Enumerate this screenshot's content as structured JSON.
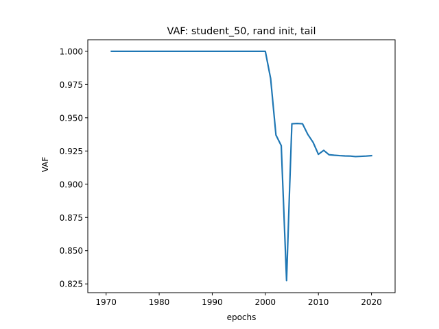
{
  "chart_data": {
    "type": "line",
    "title": "VAF: student_50, rand init, tail",
    "xlabel": "epochs",
    "ylabel": "VAF",
    "xlim": [
      1966.55,
      2024.45
    ],
    "ylim": [
      0.8184,
      1.0087
    ],
    "x_ticks": [
      1970,
      1980,
      1990,
      2000,
      2010,
      2020
    ],
    "x_tick_labels": [
      "1970",
      "1980",
      "1990",
      "2000",
      "2010",
      "2020"
    ],
    "y_ticks": [
      0.825,
      0.85,
      0.875,
      0.9,
      0.925,
      0.95,
      0.975,
      1.0
    ],
    "y_tick_labels": [
      "0.825",
      "0.850",
      "0.875",
      "0.900",
      "0.925",
      "0.950",
      "0.975",
      "1.000"
    ],
    "grid": false,
    "series": [
      {
        "color": "#1f77b4",
        "x": [
          1971,
          1975,
          1980,
          1985,
          1990,
          1995,
          2000,
          2001,
          2002,
          2003,
          2004,
          2004.6,
          2005,
          2006,
          2007,
          2008,
          2009,
          2010,
          2011,
          2012,
          2013,
          2014,
          2015,
          2016,
          2017,
          2018,
          2019,
          2020
        ],
        "y": [
          1.0,
          1.0,
          1.0,
          1.0,
          1.0,
          1.0,
          1.0,
          0.9795,
          0.937,
          0.929,
          0.8275,
          0.9,
          0.9455,
          0.9457,
          0.9455,
          0.9375,
          0.9315,
          0.9225,
          0.9255,
          0.9222,
          0.9218,
          0.9215,
          0.9213,
          0.9212,
          0.9208,
          0.921,
          0.9212,
          0.9215
        ]
      }
    ]
  }
}
